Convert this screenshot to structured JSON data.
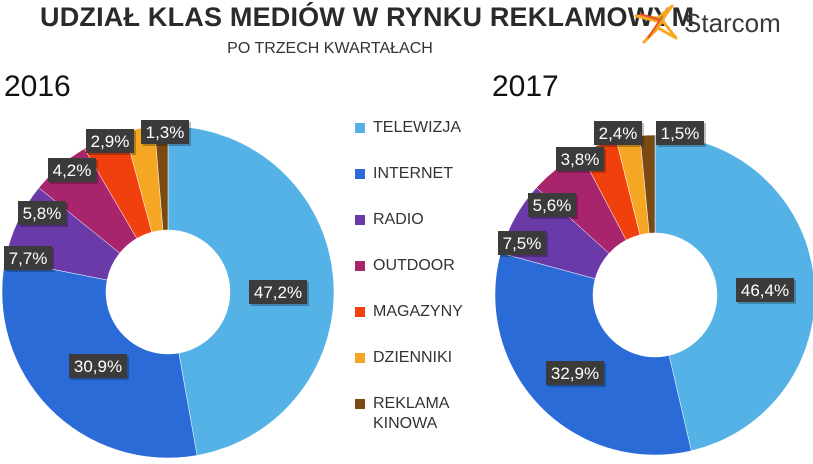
{
  "header": {
    "title": "UDZIAŁ KLAS MEDIÓW  W RYNKU REKLAMOWYM",
    "subtitle": "PO TRZECH KWARTAŁACH",
    "logo_text": "Starcom"
  },
  "colors": {
    "accent_logo_1": "#f7a823",
    "accent_logo_2": "#e8522a",
    "label_bg": "#3b3b3b",
    "label_text": "#ffffff"
  },
  "chart_data": [
    {
      "type": "pie",
      "title": "2016",
      "categories": [
        "TELEWIZJA",
        "INTERNET",
        "RADIO",
        "OUTDOOR",
        "MAGAZYNY",
        "DZIENNIKI",
        "REKLAMA KINOWA"
      ],
      "values": [
        47.2,
        30.9,
        7.7,
        5.8,
        4.2,
        2.9,
        1.3
      ],
      "labels": [
        "47,2%",
        "30,9%",
        "7,7%",
        "5,8%",
        "4,2%",
        "2,9%",
        "1,3%"
      ]
    },
    {
      "type": "pie",
      "title": "2017",
      "categories": [
        "TELEWIZJA",
        "INTERNET",
        "RADIO",
        "OUTDOOR",
        "MAGAZYNY",
        "DZIENNIKI",
        "REKLAMA KINOWA"
      ],
      "values": [
        46.4,
        32.9,
        7.5,
        5.6,
        3.8,
        2.4,
        1.5
      ],
      "labels": [
        "46,4%",
        "32,9%",
        "7,5%",
        "5,6%",
        "3,8%",
        "2,4%",
        "1,5%"
      ]
    }
  ],
  "legend": {
    "items": [
      {
        "label": "TELEWIZJA",
        "color": "#55b2e6"
      },
      {
        "label": "INTERNET",
        "color": "#2a6bd8"
      },
      {
        "label": "RADIO",
        "color": "#6a3aa8"
      },
      {
        "label": "OUTDOOR",
        "color": "#a8256e"
      },
      {
        "label": "MAGAZYNY",
        "color": "#f0400e"
      },
      {
        "label": "DZIENNIKI",
        "color": "#f5a623"
      },
      {
        "label": "REKLAMA KINOWA",
        "color": "#7a4a12"
      }
    ]
  }
}
